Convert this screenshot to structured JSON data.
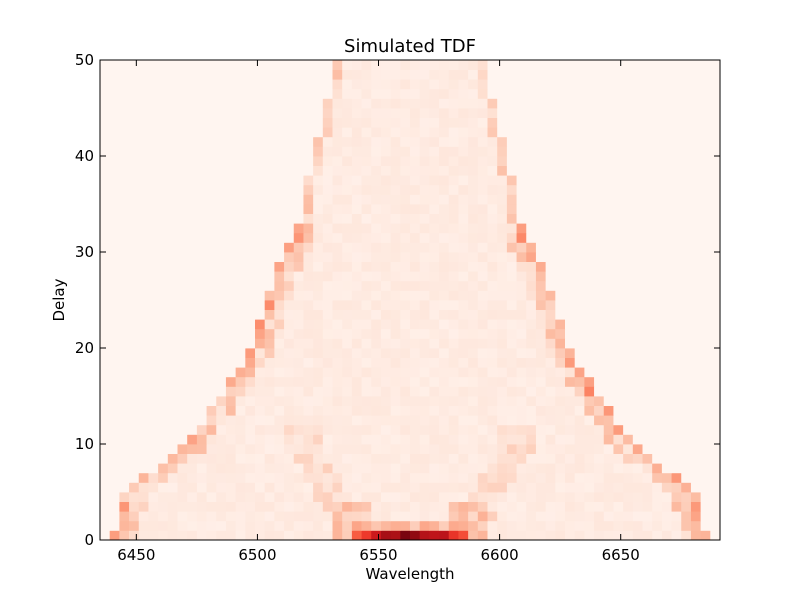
{
  "chart_data": {
    "type": "heatmap",
    "title": "Simulated TDF",
    "xlabel": "Wavelength",
    "ylabel": "Delay",
    "xlim": [
      6435,
      6691
    ],
    "ylim": [
      0,
      50
    ],
    "xticks": [
      6450,
      6500,
      6550,
      6600,
      6650
    ],
    "yticks": [
      0,
      10,
      20,
      30,
      40,
      50
    ],
    "colormap": "Reds",
    "grid": false,
    "legend": "none",
    "x_bin_width": 4,
    "y_bin_height": 1,
    "features": {
      "line_center": 6563,
      "envelope_outer_start": 6440,
      "envelope_outer_end": 6690,
      "envelope_shoulder_left": 6522,
      "envelope_shoulder_right": 6606,
      "envelope_top_left": 6540,
      "envelope_top_right": 6594,
      "envelope_max_delay": 50,
      "peak_delay_row": 0,
      "peak_wavelength_range": [
        6543,
        6590
      ]
    }
  }
}
